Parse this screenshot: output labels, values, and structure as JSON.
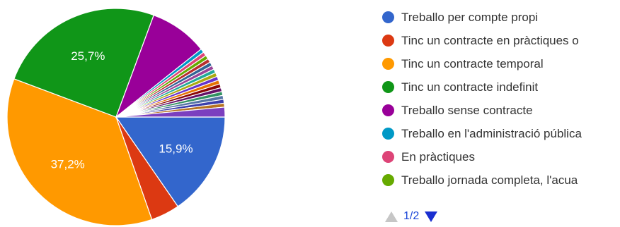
{
  "chart_data": {
    "type": "pie",
    "slices": [
      {
        "label": "Treballo per compte propi",
        "value": 15.9,
        "color": "#3366cc",
        "data_label": "15,9%"
      },
      {
        "label": "Tinc un contracte en pràctiques o",
        "value": 4.4,
        "color": "#dc3912",
        "data_label": ""
      },
      {
        "label": "Tinc un contracte temporal",
        "value": 37.2,
        "color": "#ff9900",
        "data_label": "37,2%"
      },
      {
        "label": "Tinc un contracte indefinit",
        "value": 25.7,
        "color": "#109618",
        "data_label": "25,7%"
      },
      {
        "label": "Treballo sense contracte",
        "value": 8.9,
        "color": "#990099",
        "data_label": ""
      },
      {
        "label": "Treballo en l'administració pública",
        "value": 0.6,
        "color": "#0099c6",
        "data_label": ""
      },
      {
        "label": "En pràctiques",
        "value": 0.6,
        "color": "#dd4477",
        "data_label": ""
      },
      {
        "label": "Treballo jornada completa, l'acua",
        "value": 0.6,
        "color": "#66aa00",
        "data_label": ""
      },
      {
        "label": "",
        "value": 0.6,
        "color": "#b82e2e",
        "data_label": ""
      },
      {
        "label": "",
        "value": 0.6,
        "color": "#316395",
        "data_label": ""
      },
      {
        "label": "",
        "value": 0.6,
        "color": "#994499",
        "data_label": ""
      },
      {
        "label": "",
        "value": 0.6,
        "color": "#22aa99",
        "data_label": ""
      },
      {
        "label": "",
        "value": 0.6,
        "color": "#aaaa11",
        "data_label": ""
      },
      {
        "label": "",
        "value": 0.6,
        "color": "#6633cc",
        "data_label": ""
      },
      {
        "label": "",
        "value": 0.6,
        "color": "#e67300",
        "data_label": ""
      },
      {
        "label": "",
        "value": 0.6,
        "color": "#8b0707",
        "data_label": ""
      },
      {
        "label": "",
        "value": 0.6,
        "color": "#651067",
        "data_label": ""
      },
      {
        "label": "",
        "value": 0.6,
        "color": "#329262",
        "data_label": ""
      },
      {
        "label": "",
        "value": 0.6,
        "color": "#5574a6",
        "data_label": ""
      },
      {
        "label": "",
        "value": 0.6,
        "color": "#3b3eac",
        "data_label": ""
      },
      {
        "label": "",
        "value": 0.6,
        "color": "#b77322",
        "data_label": ""
      },
      {
        "label": "",
        "value": 1.5,
        "color": "#7b3fbf",
        "data_label": ""
      }
    ],
    "legend_position": "right",
    "legend_visible_count": 8
  },
  "legend": {
    "items": [
      {
        "label": "Treballo per compte propi",
        "color": "#3366cc"
      },
      {
        "label": "Tinc un contracte en pràctiques o",
        "color": "#dc3912"
      },
      {
        "label": "Tinc un contracte temporal",
        "color": "#ff9900"
      },
      {
        "label": "Tinc un contracte indefinit",
        "color": "#109618"
      },
      {
        "label": "Treballo sense contracte",
        "color": "#990099"
      },
      {
        "label": "Treballo en l'administració pública",
        "color": "#0099c6"
      },
      {
        "label": "En pràctiques",
        "color": "#dd4477"
      },
      {
        "label": "Treballo jornada completa, l'acua",
        "color": "#66aa00"
      }
    ]
  },
  "pager": {
    "label": "1/2",
    "prev_icon": "triangle-up-icon",
    "next_icon": "triangle-down-icon"
  }
}
